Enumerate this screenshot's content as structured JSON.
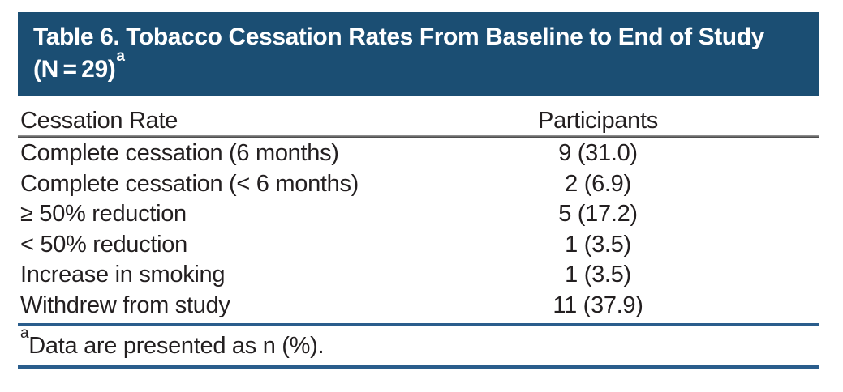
{
  "header": {
    "title": "Table 6. Tobacco Cessation Rates From Baseline to End of Study (N = 29)",
    "title_superscript": "a"
  },
  "table": {
    "columns": [
      "Cessation Rate",
      "Participants"
    ],
    "rows": [
      {
        "label": "Complete cessation (6 months)",
        "value": "9 (31.0)"
      },
      {
        "label": "Complete cessation (< 6 months)",
        "value": "2 (6.9)"
      },
      {
        "label": "≥ 50% reduction",
        "value": "5 (17.2)"
      },
      {
        "label": "< 50% reduction",
        "value": "1 (3.5)"
      },
      {
        "label": "Increase in smoking",
        "value": "1 (3.5)"
      },
      {
        "label": "Withdrew from study",
        "value": "11 (37.9)"
      }
    ]
  },
  "footnote": {
    "superscript": "a",
    "text": "Data are presented as n (%)."
  },
  "colors": {
    "header_bar": "#1b4e73",
    "rule_blue": "#2a5d8c",
    "body_text": "#231f20"
  }
}
